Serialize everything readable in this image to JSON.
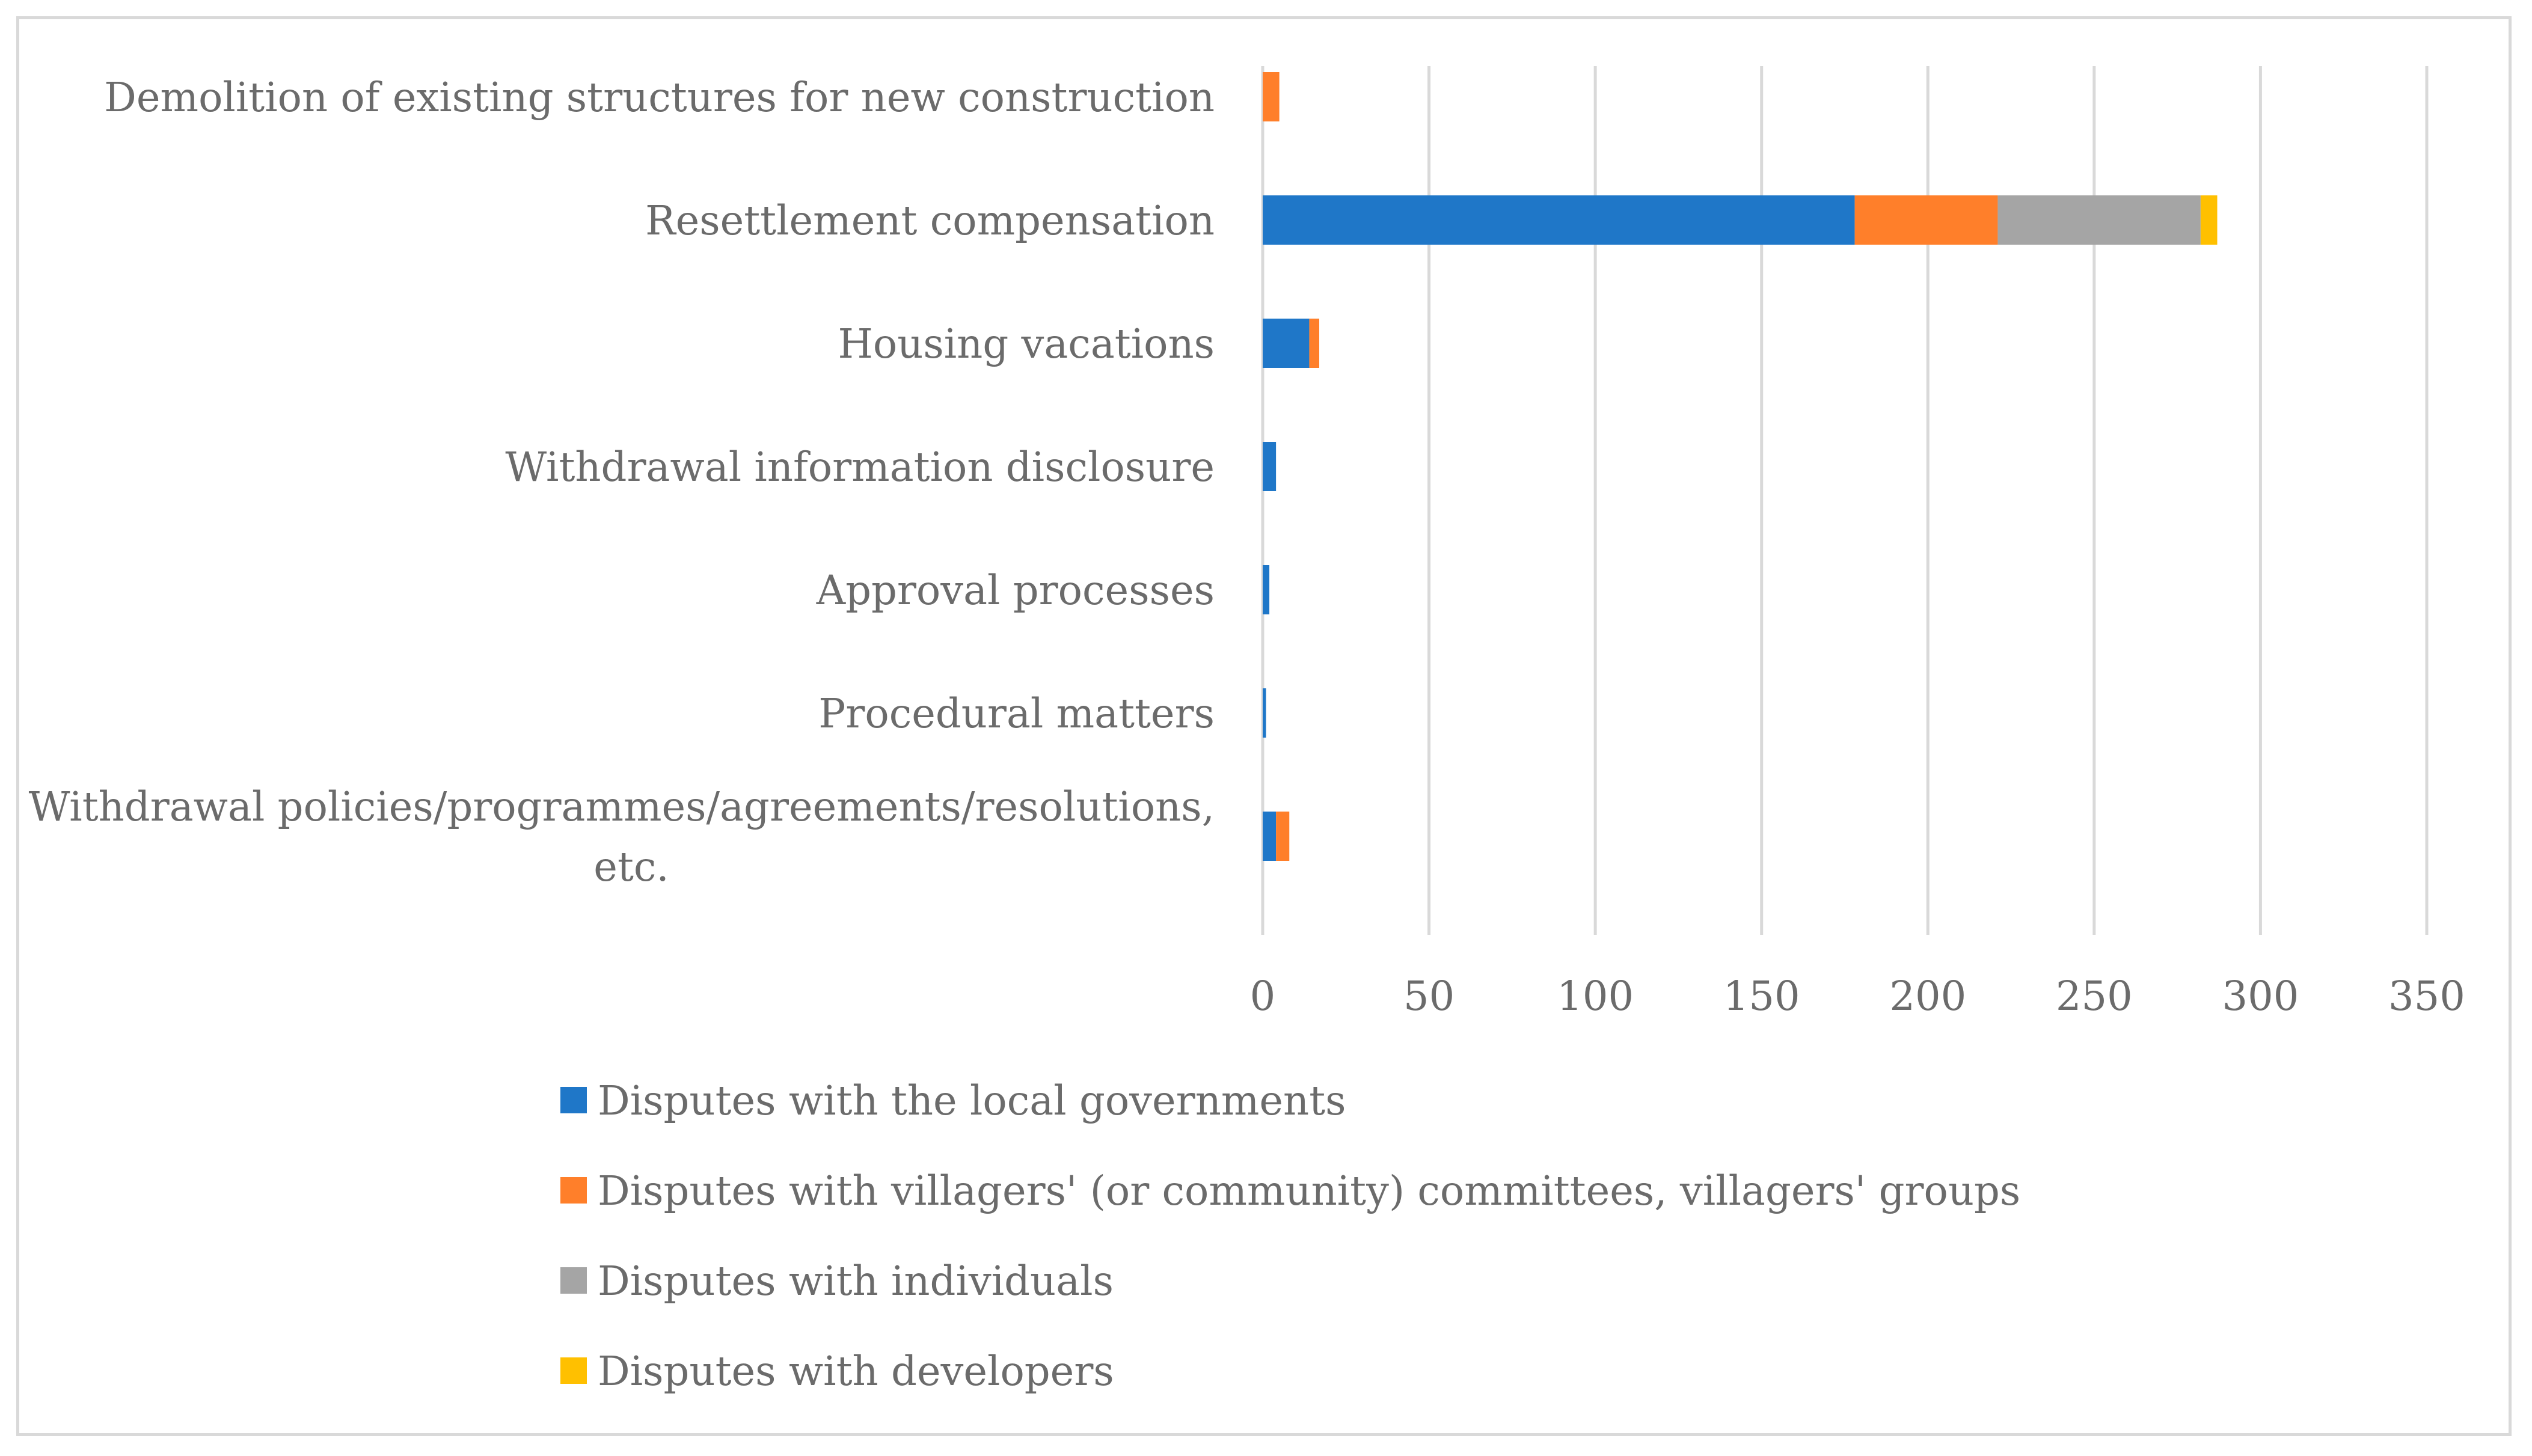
{
  "chart_data": {
    "type": "bar",
    "orientation": "horizontal",
    "stacked": true,
    "title": "",
    "xlabel": "",
    "ylabel": "",
    "xlim": [
      0,
      350
    ],
    "ticks": [
      0,
      50,
      100,
      150,
      200,
      250,
      300,
      350
    ],
    "grid": true,
    "legend_position": "bottom",
    "categories": [
      {
        "lines": [
          "Demolition of existing structures for new construction"
        ]
      },
      {
        "lines": [
          "Resettlement compensation"
        ]
      },
      {
        "lines": [
          "Housing vacations"
        ]
      },
      {
        "lines": [
          "Withdrawal information disclosure"
        ]
      },
      {
        "lines": [
          "Approval processes"
        ]
      },
      {
        "lines": [
          "Procedural matters"
        ]
      },
      {
        "lines": [
          "Withdrawal policies/programmes/agreements/resolutions,",
          "etc."
        ]
      }
    ],
    "series": [
      {
        "name": "Disputes with the local governments",
        "color": "#1f77c8",
        "values": [
          0,
          178,
          14,
          4,
          2,
          1,
          4
        ]
      },
      {
        "name": "Disputes with villagers' (or community) committees, villagers' groups",
        "color": "#ff7f2a",
        "values": [
          5,
          43,
          3,
          0,
          0,
          0,
          4
        ]
      },
      {
        "name": "Disputes with individuals",
        "color": "#a5a5a5",
        "values": [
          0,
          61,
          0,
          0,
          0,
          0,
          0
        ]
      },
      {
        "name": "Disputes with developers",
        "color": "#ffc000",
        "values": [
          0,
          5,
          0,
          0,
          0,
          0,
          0
        ]
      }
    ]
  }
}
